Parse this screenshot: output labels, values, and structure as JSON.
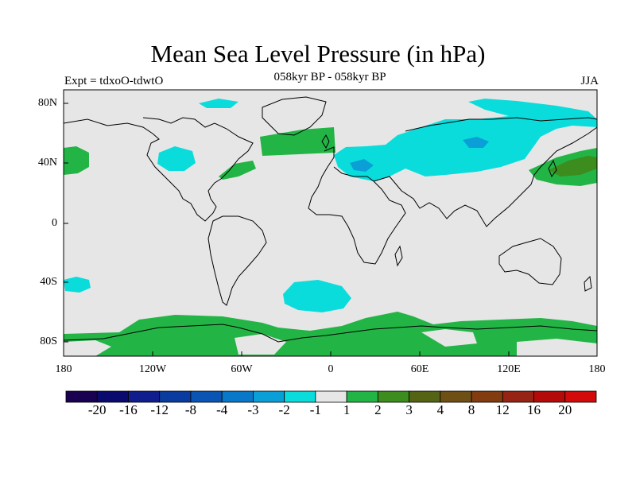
{
  "title": "Mean Sea Level Pressure (in hPa)",
  "subtitle": "058kyr BP - 058kyr BP",
  "left_label": "Expt = tdxoO-tdwtO",
  "right_label": "JJA",
  "axes": {
    "y_ticks": [
      "80N",
      "40N",
      "0",
      "40S",
      "80S"
    ],
    "x_ticks": [
      "180",
      "120W",
      "60W",
      "0",
      "60E",
      "120E",
      "180"
    ]
  },
  "legend": {
    "colors": [
      "#1a0050",
      "#0a0a6e",
      "#0f1e8c",
      "#0a3ca0",
      "#0a55b4",
      "#0a78c8",
      "#0aa0d7",
      "#0adcdc",
      "#e6e6e6",
      "#23b446",
      "#3c8c1e",
      "#556414",
      "#6e5014",
      "#823c0f",
      "#962314",
      "#b40a0a",
      "#d20a0a"
    ],
    "labels": [
      "-20",
      "-16",
      "-12",
      "-8",
      "-4",
      "-3",
      "-2",
      "-1",
      "1",
      "2",
      "3",
      "4",
      "8",
      "12",
      "16",
      "20"
    ]
  },
  "map": {
    "background_color": "#e6e6e6",
    "regions": [
      {
        "name": "eurasia-arctic-negative",
        "level": "-1 to -2",
        "color": "#0adcdc"
      },
      {
        "name": "north-america-negative",
        "level": "-1 to -2",
        "color": "#0adcdc"
      },
      {
        "name": "south-atlantic-negative",
        "level": "-1 to -2",
        "color": "#0adcdc"
      },
      {
        "name": "south-pacific-negative",
        "level": "-1 to -2",
        "color": "#0adcdc"
      },
      {
        "name": "north-atlantic-positive",
        "level": "1 to 2",
        "color": "#23b446"
      },
      {
        "name": "north-pacific-positive",
        "level": "1 to 2",
        "color": "#23b446"
      },
      {
        "name": "north-pacific-core",
        "level": "2 to 3",
        "color": "#3c8c1e"
      },
      {
        "name": "antarctic-positive",
        "level": "1 to 2",
        "color": "#23b446"
      }
    ]
  }
}
